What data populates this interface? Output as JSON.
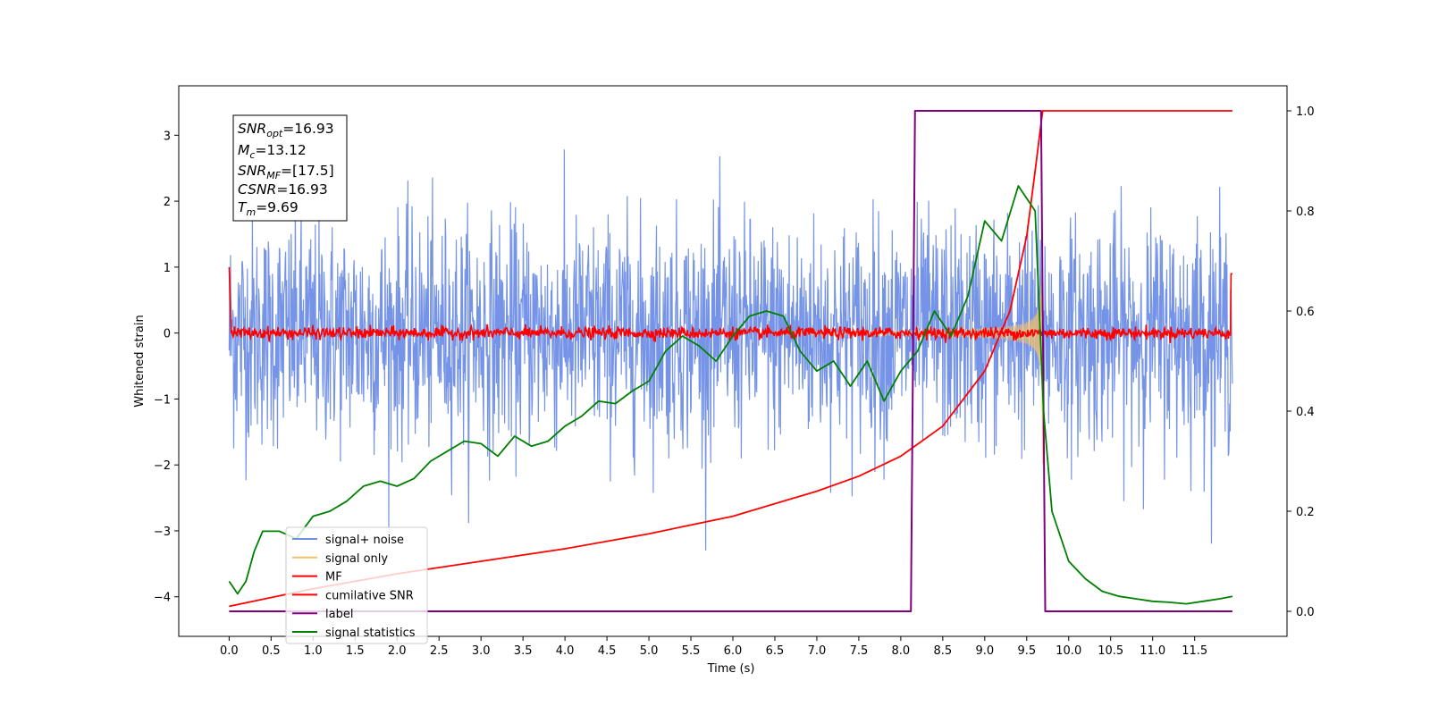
{
  "chart_data": {
    "type": "line",
    "xlabel": "Time (s)",
    "ylabel": "Whitened strain",
    "xlim": [
      -0.6,
      12.6
    ],
    "ylim": [
      -4.6,
      3.75
    ],
    "ylim_right": [
      -0.05,
      1.05
    ],
    "grid": false,
    "legend_position": "bottom-left",
    "x_ticks": [
      "0.0",
      "0.5",
      "1.0",
      "1.5",
      "2.0",
      "2.5",
      "3.0",
      "3.5",
      "4.0",
      "4.5",
      "5.0",
      "5.5",
      "6.0",
      "6.5",
      "7.0",
      "7.5",
      "8.0",
      "8.5",
      "9.0",
      "9.5",
      "10.0",
      "10.5",
      "11.0",
      "11.5"
    ],
    "y_ticks_left": [
      "3",
      "2",
      "1",
      "0",
      "−1",
      "−2",
      "−3",
      "−4"
    ],
    "y_ticks_right": [
      "1.0",
      "0.8",
      "0.6",
      "0.4",
      "0.2",
      "0.0"
    ],
    "annotation": {
      "snr_opt": {
        "base": "SNR",
        "sub": "opt",
        "value": "=16.93"
      },
      "mc": {
        "base": "M",
        "sub": "c",
        "value": "=13.12"
      },
      "snr_mf": {
        "base": "SNR",
        "sub": "MF",
        "value": "=[17.5]"
      },
      "csnr": {
        "base": "CSNR",
        "sub": "",
        "value": "=16.93"
      },
      "tm": {
        "base": "T",
        "sub": "m",
        "value": "=9.69"
      }
    },
    "series": [
      {
        "name": "signal+ noise",
        "color": "#6f8ee6",
        "axis": "left",
        "description": "white noise, std approx 0.85, peaks to about +3.1 / -3.3"
      },
      {
        "name": "signal only",
        "color": "#f5c26b",
        "axis": "left",
        "description": "chirp waveform growing in amplitude until merger at t=9.69"
      },
      {
        "name": "MF",
        "color": "#ff0000",
        "axis": "left",
        "description": "matched filter output near 0 with small noise, spikes to about 1.0 at both ends"
      },
      {
        "name": "cumilative SNR",
        "color": "#ff0000",
        "axis": "right",
        "x": [
          0.0,
          1.0,
          2.0,
          3.0,
          4.0,
          5.0,
          6.0,
          7.0,
          7.5,
          8.0,
          8.5,
          9.0,
          9.3,
          9.5,
          9.6,
          9.69,
          10.0,
          11.0,
          11.95
        ],
        "values": [
          0.01,
          0.045,
          0.075,
          0.1,
          0.125,
          0.155,
          0.19,
          0.24,
          0.27,
          0.31,
          0.37,
          0.48,
          0.6,
          0.75,
          0.88,
          1.0,
          1.0,
          1.0,
          1.0
        ]
      },
      {
        "name": "label",
        "color": "#800080",
        "axis": "right",
        "x": [
          0.0,
          8.12,
          8.17,
          9.67,
          9.72,
          11.95
        ],
        "values": [
          0.0,
          0.0,
          1.0,
          1.0,
          0.0,
          0.0
        ]
      },
      {
        "name": "signal statistics",
        "color": "#008000",
        "axis": "right",
        "x": [
          0.0,
          0.1,
          0.2,
          0.3,
          0.4,
          0.6,
          0.8,
          1.0,
          1.2,
          1.4,
          1.6,
          1.8,
          2.0,
          2.2,
          2.4,
          2.6,
          2.8,
          3.0,
          3.2,
          3.4,
          3.6,
          3.8,
          4.0,
          4.2,
          4.4,
          4.6,
          4.8,
          5.0,
          5.2,
          5.4,
          5.6,
          5.8,
          6.0,
          6.2,
          6.4,
          6.6,
          6.8,
          7.0,
          7.2,
          7.4,
          7.6,
          7.8,
          8.0,
          8.2,
          8.4,
          8.6,
          8.8,
          9.0,
          9.2,
          9.4,
          9.6,
          9.7,
          9.8,
          10.0,
          10.2,
          10.4,
          10.6,
          10.8,
          11.0,
          11.2,
          11.4,
          11.6,
          11.8,
          11.95
        ],
        "values": [
          0.06,
          0.035,
          0.06,
          0.12,
          0.16,
          0.16,
          0.145,
          0.19,
          0.2,
          0.22,
          0.25,
          0.26,
          0.25,
          0.265,
          0.3,
          0.32,
          0.34,
          0.335,
          0.31,
          0.35,
          0.33,
          0.34,
          0.37,
          0.39,
          0.42,
          0.415,
          0.44,
          0.46,
          0.52,
          0.55,
          0.53,
          0.5,
          0.55,
          0.59,
          0.6,
          0.59,
          0.52,
          0.48,
          0.5,
          0.45,
          0.5,
          0.42,
          0.48,
          0.52,
          0.6,
          0.55,
          0.63,
          0.78,
          0.74,
          0.85,
          0.8,
          0.4,
          0.2,
          0.1,
          0.065,
          0.04,
          0.03,
          0.025,
          0.02,
          0.018,
          0.015,
          0.02,
          0.025,
          0.03
        ]
      }
    ]
  }
}
